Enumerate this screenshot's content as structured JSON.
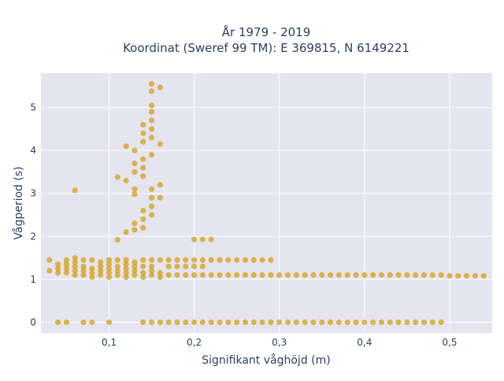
{
  "chart_data": {
    "type": "scatter",
    "title_line1": "År 1979 - 2019",
    "title_line2": "Koordinat (Sweref 99 TM): E 369815, N 6149221",
    "xlabel": "Signifikant våghöjd (m)",
    "ylabel": "Vågperiod (s)",
    "xlim": [
      0.02,
      0.55
    ],
    "ylim": [
      -0.25,
      5.8
    ],
    "xticks": [
      0.1,
      0.2,
      0.3,
      0.4,
      0.5
    ],
    "xtick_labels": [
      "0,1",
      "0,2",
      "0,3",
      "0,4",
      "0,5"
    ],
    "yticks": [
      0,
      1,
      2,
      3,
      4,
      5
    ],
    "ytick_labels": [
      "0",
      "1",
      "2",
      "3",
      "4",
      "5"
    ],
    "grid": true,
    "plot_background": "#e5e5f0",
    "marker_color": "#d4a017",
    "points": [
      [
        0.03,
        1.2
      ],
      [
        0.03,
        1.45
      ],
      [
        0.04,
        1.15
      ],
      [
        0.04,
        1.25
      ],
      [
        0.04,
        1.35
      ],
      [
        0.05,
        1.15
      ],
      [
        0.05,
        1.25
      ],
      [
        0.05,
        1.35
      ],
      [
        0.05,
        1.45
      ],
      [
        0.06,
        1.1
      ],
      [
        0.06,
        1.2
      ],
      [
        0.06,
        1.3
      ],
      [
        0.06,
        1.4
      ],
      [
        0.06,
        1.5
      ],
      [
        0.06,
        3.07
      ],
      [
        0.07,
        1.1
      ],
      [
        0.07,
        1.2
      ],
      [
        0.07,
        1.3
      ],
      [
        0.07,
        1.45
      ],
      [
        0.08,
        1.05
      ],
      [
        0.08,
        1.15
      ],
      [
        0.08,
        1.25
      ],
      [
        0.08,
        1.45
      ],
      [
        0.09,
        1.1
      ],
      [
        0.09,
        1.2
      ],
      [
        0.09,
        1.3
      ],
      [
        0.09,
        1.4
      ],
      [
        0.1,
        1.05
      ],
      [
        0.1,
        1.15
      ],
      [
        0.1,
        1.25
      ],
      [
        0.1,
        1.35
      ],
      [
        0.1,
        1.45
      ],
      [
        0.11,
        1.1
      ],
      [
        0.11,
        1.2
      ],
      [
        0.11,
        1.3
      ],
      [
        0.11,
        1.45
      ],
      [
        0.11,
        1.92
      ],
      [
        0.11,
        3.38
      ],
      [
        0.12,
        1.05
      ],
      [
        0.12,
        1.15
      ],
      [
        0.12,
        1.25
      ],
      [
        0.12,
        1.35
      ],
      [
        0.12,
        1.45
      ],
      [
        0.12,
        2.1
      ],
      [
        0.12,
        3.3
      ],
      [
        0.12,
        4.1
      ],
      [
        0.13,
        1.1
      ],
      [
        0.13,
        1.2
      ],
      [
        0.13,
        1.3
      ],
      [
        0.13,
        1.4
      ],
      [
        0.13,
        2.15
      ],
      [
        0.13,
        2.3
      ],
      [
        0.13,
        2.98
      ],
      [
        0.13,
        3.1
      ],
      [
        0.13,
        3.5
      ],
      [
        0.13,
        3.7
      ],
      [
        0.13,
        4.0
      ],
      [
        0.14,
        1.05
      ],
      [
        0.14,
        1.15
      ],
      [
        0.14,
        1.3
      ],
      [
        0.14,
        1.45
      ],
      [
        0.14,
        2.2
      ],
      [
        0.14,
        2.4
      ],
      [
        0.14,
        2.6
      ],
      [
        0.14,
        3.4
      ],
      [
        0.14,
        3.6
      ],
      [
        0.14,
        3.8
      ],
      [
        0.14,
        4.2
      ],
      [
        0.14,
        4.4
      ],
      [
        0.14,
        4.6
      ],
      [
        0.15,
        1.1
      ],
      [
        0.15,
        1.2
      ],
      [
        0.15,
        1.3
      ],
      [
        0.15,
        1.45
      ],
      [
        0.15,
        2.5
      ],
      [
        0.15,
        2.7
      ],
      [
        0.15,
        2.9
      ],
      [
        0.15,
        3.1
      ],
      [
        0.15,
        3.9
      ],
      [
        0.15,
        4.3
      ],
      [
        0.15,
        4.5
      ],
      [
        0.15,
        4.7
      ],
      [
        0.15,
        4.9
      ],
      [
        0.15,
        5.05
      ],
      [
        0.15,
        5.38
      ],
      [
        0.15,
        5.55
      ],
      [
        0.16,
        1.05
      ],
      [
        0.16,
        1.15
      ],
      [
        0.16,
        1.45
      ],
      [
        0.16,
        2.9
      ],
      [
        0.16,
        3.2
      ],
      [
        0.16,
        4.15
      ],
      [
        0.16,
        5.47
      ],
      [
        0.17,
        1.1
      ],
      [
        0.17,
        1.3
      ],
      [
        0.17,
        1.45
      ],
      [
        0.18,
        1.1
      ],
      [
        0.18,
        1.3
      ],
      [
        0.18,
        1.45
      ],
      [
        0.19,
        1.1
      ],
      [
        0.19,
        1.3
      ],
      [
        0.19,
        1.45
      ],
      [
        0.2,
        1.1
      ],
      [
        0.2,
        1.3
      ],
      [
        0.2,
        1.45
      ],
      [
        0.2,
        1.93
      ],
      [
        0.21,
        1.1
      ],
      [
        0.21,
        1.3
      ],
      [
        0.21,
        1.45
      ],
      [
        0.21,
        1.93
      ],
      [
        0.22,
        1.1
      ],
      [
        0.22,
        1.45
      ],
      [
        0.22,
        1.93
      ],
      [
        0.23,
        1.1
      ],
      [
        0.23,
        1.45
      ],
      [
        0.24,
        1.1
      ],
      [
        0.24,
        1.45
      ],
      [
        0.25,
        1.1
      ],
      [
        0.25,
        1.45
      ],
      [
        0.26,
        1.1
      ],
      [
        0.26,
        1.45
      ],
      [
        0.27,
        1.1
      ],
      [
        0.27,
        1.45
      ],
      [
        0.28,
        1.1
      ],
      [
        0.28,
        1.45
      ],
      [
        0.29,
        1.1
      ],
      [
        0.29,
        1.45
      ],
      [
        0.3,
        1.1
      ],
      [
        0.31,
        1.1
      ],
      [
        0.32,
        1.1
      ],
      [
        0.33,
        1.1
      ],
      [
        0.34,
        1.1
      ],
      [
        0.35,
        1.1
      ],
      [
        0.36,
        1.1
      ],
      [
        0.37,
        1.1
      ],
      [
        0.38,
        1.1
      ],
      [
        0.39,
        1.1
      ],
      [
        0.4,
        1.1
      ],
      [
        0.41,
        1.1
      ],
      [
        0.42,
        1.1
      ],
      [
        0.43,
        1.1
      ],
      [
        0.44,
        1.1
      ],
      [
        0.45,
        1.1
      ],
      [
        0.46,
        1.1
      ],
      [
        0.47,
        1.1
      ],
      [
        0.48,
        1.1
      ],
      [
        0.49,
        1.1
      ],
      [
        0.5,
        1.08
      ],
      [
        0.51,
        1.08
      ],
      [
        0.52,
        1.08
      ],
      [
        0.53,
        1.08
      ],
      [
        0.54,
        1.08
      ],
      [
        0.04,
        0
      ],
      [
        0.05,
        0
      ],
      [
        0.07,
        0
      ],
      [
        0.08,
        0
      ],
      [
        0.1,
        0
      ],
      [
        0.14,
        0
      ],
      [
        0.15,
        0
      ],
      [
        0.16,
        0
      ],
      [
        0.17,
        0
      ],
      [
        0.18,
        0
      ],
      [
        0.19,
        0
      ],
      [
        0.2,
        0
      ],
      [
        0.21,
        0
      ],
      [
        0.22,
        0
      ],
      [
        0.23,
        0
      ],
      [
        0.24,
        0
      ],
      [
        0.25,
        0
      ],
      [
        0.26,
        0
      ],
      [
        0.27,
        0
      ],
      [
        0.28,
        0
      ],
      [
        0.29,
        0
      ],
      [
        0.3,
        0
      ],
      [
        0.31,
        0
      ],
      [
        0.32,
        0
      ],
      [
        0.33,
        0
      ],
      [
        0.34,
        0
      ],
      [
        0.35,
        0
      ],
      [
        0.36,
        0
      ],
      [
        0.37,
        0
      ],
      [
        0.38,
        0
      ],
      [
        0.39,
        0
      ],
      [
        0.4,
        0
      ],
      [
        0.41,
        0
      ],
      [
        0.42,
        0
      ],
      [
        0.43,
        0
      ],
      [
        0.44,
        0
      ],
      [
        0.45,
        0
      ],
      [
        0.46,
        0
      ],
      [
        0.47,
        0
      ],
      [
        0.48,
        0
      ],
      [
        0.49,
        0
      ]
    ]
  }
}
